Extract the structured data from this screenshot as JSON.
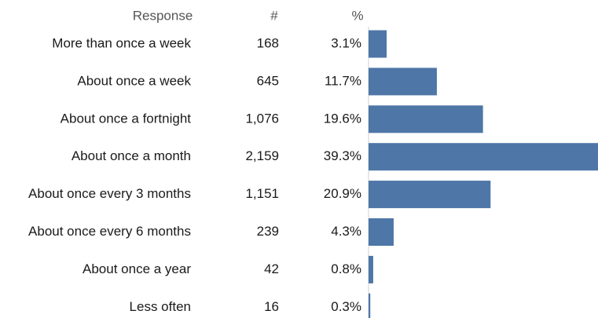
{
  "chart_data": {
    "type": "bar",
    "columns": [
      "Response",
      "#",
      "%"
    ],
    "categories": [
      "More than once a week",
      "About once a week",
      "About once a fortnight",
      "About once a month",
      "About once every 3 months",
      "About once every 6 months",
      "About once a year",
      "Less often"
    ],
    "series": [
      {
        "name": "#",
        "values": [
          168,
          645,
          1076,
          2159,
          1151,
          239,
          42,
          16
        ],
        "value_labels": [
          "168",
          "645",
          "1,076",
          "2,159",
          "1,151",
          "239",
          "42",
          "16"
        ]
      },
      {
        "name": "%",
        "color": "#4e76a7",
        "values": [
          3.1,
          11.7,
          19.6,
          39.3,
          20.9,
          4.3,
          0.8,
          0.3
        ],
        "value_labels": [
          "3.1%",
          "11.7%",
          "19.6%",
          "39.3%",
          "20.9%",
          "4.3%",
          "0.8%",
          "0.3%"
        ]
      }
    ]
  }
}
